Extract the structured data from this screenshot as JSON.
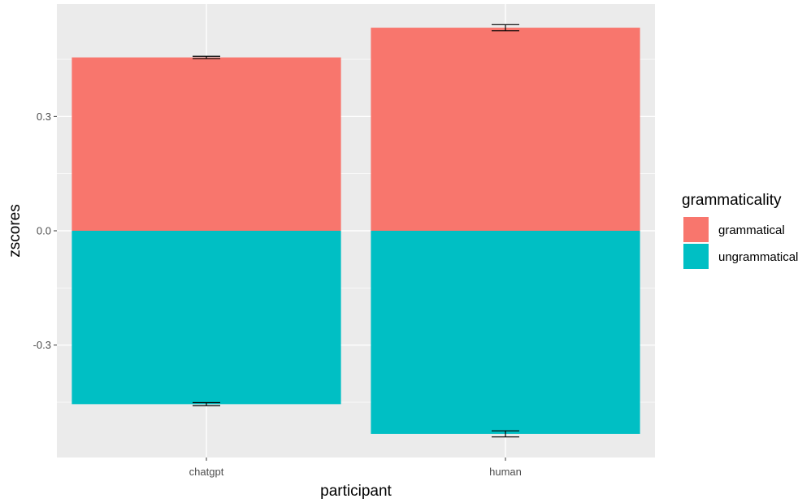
{
  "chart_data": {
    "type": "bar",
    "stacked": true,
    "xlabel": "participant",
    "ylabel": "zscores",
    "categories": [
      "chatgpt",
      "human"
    ],
    "series": [
      {
        "name": "grammatical",
        "color": "#F8766D",
        "values": [
          0.455,
          0.533
        ],
        "error": [
          0.003,
          0.008
        ]
      },
      {
        "name": "ungrammatical",
        "color": "#00BFC4",
        "values": [
          -0.455,
          -0.533
        ],
        "error": [
          0.004,
          0.008
        ]
      }
    ],
    "ylim": [
      -0.595,
      0.595
    ],
    "yticks": [
      -0.3,
      0.0,
      0.3
    ],
    "ytick_labels": [
      "-0.3",
      "0.0",
      "0.3"
    ],
    "grid": true,
    "panel_background": "#EBEBEB",
    "legend": {
      "title": "grammaticality",
      "position": "right",
      "items": [
        "grammatical",
        "ungrammatical"
      ]
    }
  }
}
